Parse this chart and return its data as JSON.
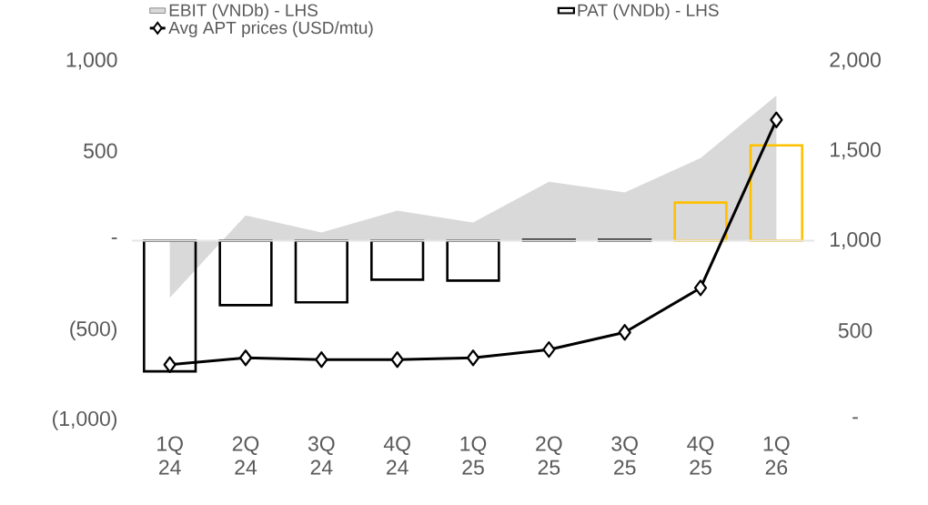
{
  "chart_data": {
    "type": "bar",
    "legend": "top",
    "categories": [
      "1Q 24",
      "2Q 24",
      "3Q 24",
      "4Q 24",
      "1Q 25",
      "2Q 25",
      "3Q 25",
      "4Q 25",
      "1Q 26"
    ],
    "series": [
      {
        "name": "EBIT (VNDb) - LHS",
        "type": "area",
        "color": "#d9d9d9",
        "values": [
          -318,
          141,
          45,
          167,
          101,
          328,
          268,
          460,
          808
        ]
      },
      {
        "name": "PAT (VNDb) - LHS",
        "colors": [
          "#000000",
          "#000000",
          "#000000",
          "#000000",
          "#000000",
          "#000000",
          "#000000",
          "#ffc000",
          "#ffc000"
        ],
        "values": [
          -727,
          -359,
          -343,
          -217,
          -222,
          5,
          5,
          212,
          530
        ]
      },
      {
        "name": "Avg APT prices (USD/mtu)",
        "type": "line",
        "axis": "y2",
        "color": "#000000",
        "marker": "diamond",
        "values": [
          310,
          348,
          338,
          338,
          348,
          394,
          490,
          737,
          1672
        ]
      }
    ],
    "ylim": [
      -1000,
      1000
    ],
    "yticks": [
      {
        "value": 1000,
        "label": "1,000"
      },
      500,
      {
        "value": 0,
        "label": "-"
      },
      {
        "value": -500,
        "label": "(500)"
      },
      {
        "value": -1000,
        "label": "(1,000)"
      }
    ],
    "y2lim": [
      0,
      2000
    ],
    "y2ticks": [
      {
        "value": 2000,
        "label": "2,000"
      },
      {
        "value": 1500,
        "label": "1,500"
      },
      {
        "value": 1000,
        "label": "1,000"
      },
      500,
      {
        "value": 0,
        "label": "-"
      }
    ]
  }
}
